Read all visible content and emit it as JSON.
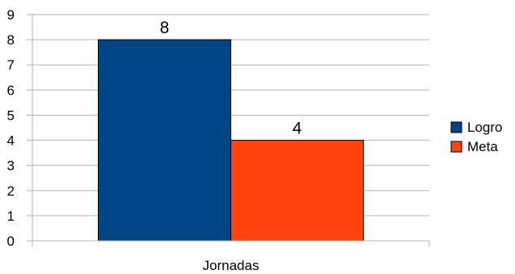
{
  "chart_data": {
    "type": "bar",
    "categories": [
      "Jornadas"
    ],
    "series": [
      {
        "name": "Logro",
        "values": [
          8
        ],
        "color": "#004586"
      },
      {
        "name": "Meta",
        "values": [
          4
        ],
        "color": "#ff420e"
      }
    ],
    "title": "",
    "xlabel": "",
    "ylabel": "",
    "ylim": [
      0,
      9
    ],
    "yticks": [
      "0",
      "1",
      "2",
      "3",
      "4",
      "5",
      "6",
      "7",
      "8",
      "9"
    ],
    "data_labels": [
      "8",
      "4"
    ],
    "grid": true,
    "legend": "right"
  }
}
